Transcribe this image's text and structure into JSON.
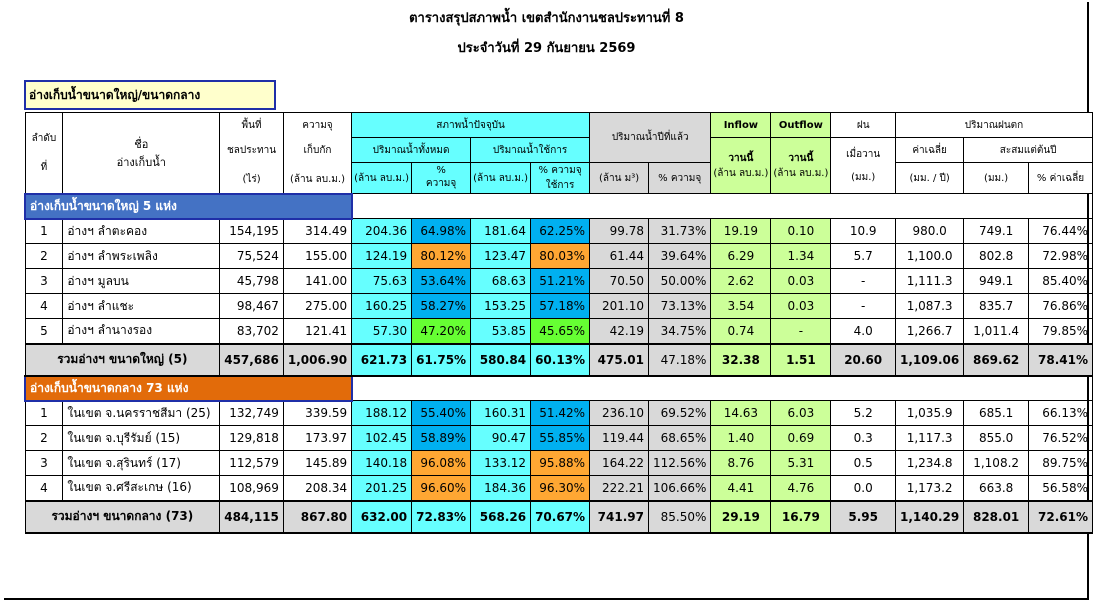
{
  "title_line1": "ตารางสรุปสภาพน้ำ เขตสำนักงานชลประทานที่ 8",
  "title_line2": "ประจำวันที่ 29 กันยายน 2569",
  "section_label": "อ่างเก็บน้ำขนาดใหญ่/ขนาดกลาง",
  "headers": {
    "seq_1": "ลำดับ",
    "seq_2": "ที่",
    "name_1": "ชื่อ",
    "name_2": "อ่างเก็บน้ำ",
    "area_1": "พื้นที่",
    "area_2": "ชลประทาน",
    "area_3": "(ไร่)",
    "cap_1": "ความจุ",
    "cap_2": "เก็บกัก",
    "cap_3": "(ล้าน ลบ.ม.)",
    "current": "สภาพน้ำปัจจุบัน",
    "total_vol": "ปริมาณน้ำทั้งหมด",
    "usable_vol": "ปริมาณน้ำใช้การ",
    "mcm": "(ล้าน ลบ.ม.)",
    "pct_1": "%",
    "pct_2": "ความจุ",
    "pct_use_1": "% ความจุ",
    "pct_use_2": "ใช้การ",
    "last_year": "ปริมาณน้ำปีที่แล้ว",
    "ly_mcm": "(ล้าน ม³)",
    "ly_pct": "% ความจุ",
    "inflow": "Inflow",
    "outflow": "Outflow",
    "today": "วานนี้",
    "flow_unit": "(ล้าน ลบ.ม.)",
    "rain": "ฝน",
    "rain_2": "เมื่อวาน",
    "rain_unit": "(มม.)",
    "rainfall": "ปริมาณฝนตก",
    "avg": "ค่าเฉลี่ย",
    "avg_unit": "(มม. / ปี)",
    "accum": "สะสมแต่ต้นปี",
    "accum_unit": "(มม.)",
    "accum_pct": "% ค่าเฉลี่ย"
  },
  "large": {
    "label": "อ่างเก็บน้ำขนาดใหญ่ 5 แห่ง",
    "rows": [
      {
        "no": "1",
        "name": "อ่างฯ ลำตะคอง",
        "area": "154,195",
        "cap": "314.49",
        "vol": "204.36",
        "pct": "64.98%",
        "use": "181.64",
        "use_pct": "62.25%",
        "ly": "99.78",
        "ly_pct": "31.73%",
        "inflow": "19.19",
        "outflow": "0.10",
        "rain": "10.9",
        "avg": "980.0",
        "acc": "749.1",
        "acc_pct": "76.44%"
      },
      {
        "no": "2",
        "name": "อ่างฯ ลำพระเพลิง",
        "area": "75,524",
        "cap": "155.00",
        "vol": "124.19",
        "pct": "80.12%",
        "use": "123.47",
        "use_pct": "80.03%",
        "ly": "61.44",
        "ly_pct": "39.64%",
        "inflow": "6.29",
        "outflow": "1.34",
        "rain": "5.7",
        "avg": "1,100.0",
        "acc": "802.8",
        "acc_pct": "72.98%"
      },
      {
        "no": "3",
        "name": "อ่างฯ มูลบน",
        "area": "45,798",
        "cap": "141.00",
        "vol": "75.63",
        "pct": "53.64%",
        "use": "68.63",
        "use_pct": "51.21%",
        "ly": "70.50",
        "ly_pct": "50.00%",
        "inflow": "2.62",
        "outflow": "0.03",
        "rain": "-",
        "avg": "1,111.3",
        "acc": "949.1",
        "acc_pct": "85.40%"
      },
      {
        "no": "4",
        "name": "อ่างฯ ลำแชะ",
        "area": "98,467",
        "cap": "275.00",
        "vol": "160.25",
        "pct": "58.27%",
        "use": "153.25",
        "use_pct": "57.18%",
        "ly": "201.10",
        "ly_pct": "73.13%",
        "inflow": "3.54",
        "outflow": "0.03",
        "rain": "-",
        "avg": "1,087.3",
        "acc": "835.7",
        "acc_pct": "76.86%"
      },
      {
        "no": "5",
        "name": "อ่างฯ ลำนางรอง",
        "area": "83,702",
        "cap": "121.41",
        "vol": "57.30",
        "pct": "47.20%",
        "use": "53.85",
        "use_pct": "45.65%",
        "ly": "42.19",
        "ly_pct": "34.75%",
        "inflow": "0.74",
        "outflow": "-",
        "rain": "4.0",
        "avg": "1,266.7",
        "acc": "1,011.4",
        "acc_pct": "79.85%"
      }
    ],
    "total": {
      "label": "รวมอ่างฯ ขนาดใหญ่ (5)",
      "area": "457,686",
      "cap": "1,006.90",
      "vol": "621.73",
      "pct": "61.75%",
      "use": "580.84",
      "use_pct": "60.13%",
      "ly": "475.01",
      "ly_pct": "47.18%",
      "inflow": "32.38",
      "outflow": "1.51",
      "rain": "20.60",
      "avg": "1,109.06",
      "acc": "869.62",
      "acc_pct": "78.41%"
    }
  },
  "medium": {
    "label": "อ่างเก็บน้ำขนาดกลาง 73 แห่ง",
    "rows": [
      {
        "no": "1",
        "name": "ในเขต จ.นครราชสีมา (25)",
        "area": "132,749",
        "cap": "339.59",
        "vol": "188.12",
        "pct": "55.40%",
        "use": "160.31",
        "use_pct": "51.42%",
        "ly": "236.10",
        "ly_pct": "69.52%",
        "inflow": "14.63",
        "outflow": "6.03",
        "rain": "5.2",
        "avg": "1,035.9",
        "acc": "685.1",
        "acc_pct": "66.13%"
      },
      {
        "no": "2",
        "name": "ในเขต จ.บุรีรัมย์ (15)",
        "area": "129,818",
        "cap": "173.97",
        "vol": "102.45",
        "pct": "58.89%",
        "use": "90.47",
        "use_pct": "55.85%",
        "ly": "119.44",
        "ly_pct": "68.65%",
        "inflow": "1.40",
        "outflow": "0.69",
        "rain": "0.3",
        "avg": "1,117.3",
        "acc": "855.0",
        "acc_pct": "76.52%"
      },
      {
        "no": "3",
        "name": "ในเขต จ.สุรินทร์ (17)",
        "area": "112,579",
        "cap": "145.89",
        "vol": "140.18",
        "pct": "96.08%",
        "use": "133.12",
        "use_pct": "95.88%",
        "ly": "164.22",
        "ly_pct": "112.56%",
        "inflow": "8.76",
        "outflow": "5.31",
        "rain": "0.5",
        "avg": "1,234.8",
        "acc": "1,108.2",
        "acc_pct": "89.75%"
      },
      {
        "no": "4",
        "name": "ในเขต จ.ศรีสะเกษ (16)",
        "area": "108,969",
        "cap": "208.34",
        "vol": "201.25",
        "pct": "96.60%",
        "use": "184.36",
        "use_pct": "96.30%",
        "ly": "222.21",
        "ly_pct": "106.66%",
        "inflow": "4.41",
        "outflow": "4.76",
        "rain": "0.0",
        "avg": "1,173.2",
        "acc": "663.8",
        "acc_pct": "56.58%"
      }
    ],
    "total": {
      "label": "รวมอ่างฯ ขนาดกลาง (73)",
      "area": "484,115",
      "cap": "867.80",
      "vol": "632.00",
      "pct": "72.83%",
      "use": "568.26",
      "use_pct": "70.67%",
      "ly": "741.97",
      "ly_pct": "85.50%",
      "inflow": "29.19",
      "outflow": "16.79",
      "rain": "5.95",
      "avg": "1,140.29",
      "acc": "828.01",
      "acc_pct": "72.61%"
    }
  },
  "colors": {
    "blue_cell": "#00b0f0",
    "orange_cell": "#ffa733",
    "green_cell": "#66ff33",
    "cyan": "#66ffff",
    "lime": "#ccff99",
    "grey": "#d9d9d9"
  }
}
